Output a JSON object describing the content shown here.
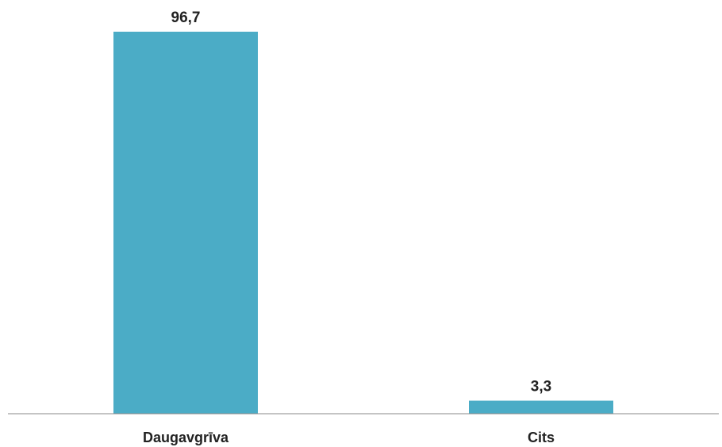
{
  "chart_data": {
    "type": "bar",
    "title": "",
    "xlabel": "",
    "ylabel": "",
    "categories": [
      "Daugavgrīva",
      "Cits"
    ],
    "values": [
      96.7,
      3.3
    ],
    "data_labels": [
      "96,7",
      "3,3"
    ],
    "ylim": [
      0,
      96.7
    ],
    "grid": false,
    "legend": "none",
    "bar_color": "#4BACC6",
    "axis_color": "#888888"
  }
}
